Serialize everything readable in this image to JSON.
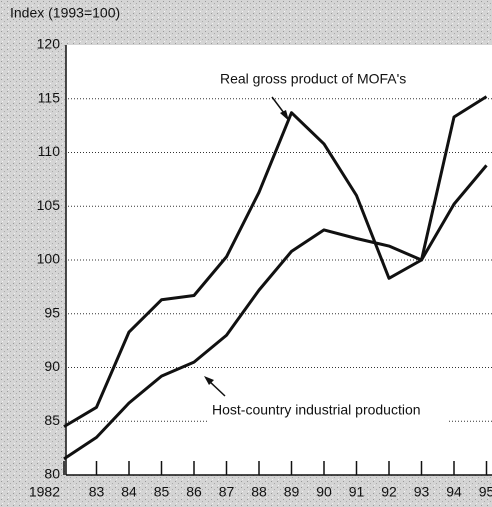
{
  "chart_data": {
    "type": "line",
    "y_label": "Index (1993=100)",
    "categories": [
      "1982",
      "83",
      "84",
      "85",
      "86",
      "87",
      "88",
      "89",
      "90",
      "91",
      "92",
      "93",
      "94",
      "95"
    ],
    "series": [
      {
        "name": "Real gross product of MOFA's",
        "color": "#111111",
        "values": [
          84.5,
          86.3,
          93.3,
          96.3,
          96.7,
          100.3,
          106.3,
          113.7,
          110.8,
          106,
          98.3,
          100,
          113.3,
          115.2
        ]
      },
      {
        "name": "Host-country industrial production",
        "color": "#111111",
        "values": [
          81.5,
          83.5,
          86.7,
          89.2,
          90.5,
          93,
          97.2,
          100.8,
          102.8,
          102,
          101.3,
          100,
          105.2,
          108.8
        ]
      }
    ],
    "ylim": [
      80,
      120
    ],
    "yticks": [
      80,
      85,
      90,
      95,
      100,
      105,
      110,
      115,
      120
    ],
    "grid": true
  }
}
